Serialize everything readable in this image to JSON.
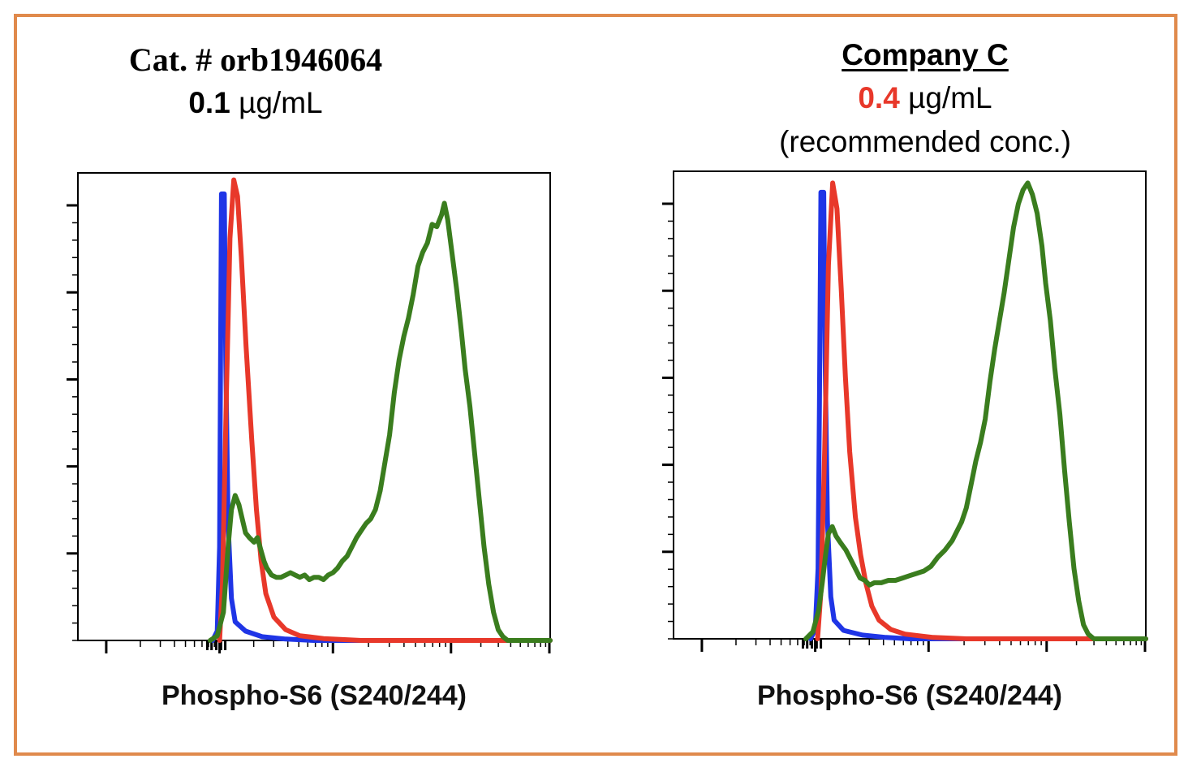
{
  "colors": {
    "border": "#e08a4c",
    "blue": "#1f35e6",
    "red": "#e8382a",
    "green": "#3a7d1e",
    "highlight": "#e8382a"
  },
  "left": {
    "title": "Cat. # orb1946064",
    "conc_value": "0.1",
    "conc_unit": "µg/mL",
    "xlabel": "Phospho-S6 (S240/244)"
  },
  "right": {
    "title": "Company C",
    "conc_value": "0.4",
    "conc_unit": "µg/mL",
    "note": "(recommended conc.)",
    "xlabel": "Phospho-S6 (S240/244)"
  },
  "chart_data": [
    {
      "type": "line",
      "title": "Cat. # orb1946064",
      "xlabel": "Phospho-S6 (S240/244)",
      "ylabel": "",
      "xlim": [
        0,
        100
      ],
      "ylim": [
        0,
        100
      ],
      "grid": false,
      "series": [
        {
          "color": "#1f35e6",
          "points": [
            [
              28.5,
              0
            ],
            [
              29.5,
              2
            ],
            [
              30.0,
              20
            ],
            [
              30.2,
              60
            ],
            [
              30.4,
              95.5
            ],
            [
              31.0,
              95.5
            ],
            [
              31.3,
              60
            ],
            [
              31.8,
              25
            ],
            [
              32.5,
              9
            ],
            [
              33.3,
              4
            ],
            [
              35.5,
              2
            ],
            [
              39,
              0.8
            ],
            [
              44,
              0.3
            ],
            [
              50,
              0
            ],
            [
              100,
              0
            ]
          ]
        },
        {
          "color": "#e8382a",
          "points": [
            [
              30.0,
              0
            ],
            [
              30.6,
              12
            ],
            [
              31.5,
              55
            ],
            [
              32.2,
              86
            ],
            [
              33.0,
              98.5
            ],
            [
              33.8,
              95
            ],
            [
              34.6,
              82
            ],
            [
              35.6,
              63
            ],
            [
              36.8,
              43
            ],
            [
              37.8,
              28
            ],
            [
              38.8,
              17
            ],
            [
              39.8,
              10
            ],
            [
              41.5,
              5
            ],
            [
              44,
              2.3
            ],
            [
              47,
              1
            ],
            [
              52,
              0.4
            ],
            [
              60,
              0
            ],
            [
              100,
              0
            ]
          ]
        },
        {
          "color": "#3a7d1e",
          "points": [
            [
              28,
              0
            ],
            [
              29.5,
              1
            ],
            [
              30.8,
              6
            ],
            [
              31.8,
              20
            ],
            [
              32.5,
              28
            ],
            [
              33.3,
              31
            ],
            [
              34.1,
              29
            ],
            [
              34.8,
              26
            ],
            [
              35.5,
              23
            ],
            [
              36.3,
              22
            ],
            [
              37.3,
              21
            ],
            [
              38.0,
              22
            ],
            [
              38.7,
              19.5
            ],
            [
              39.4,
              17
            ],
            [
              40,
              15.5
            ],
            [
              41,
              14
            ],
            [
              42,
              13.5
            ],
            [
              43,
              13.5
            ],
            [
              44,
              14
            ],
            [
              45,
              14.5
            ],
            [
              46,
              14
            ],
            [
              47,
              13.5
            ],
            [
              48,
              14
            ],
            [
              49,
              13
            ],
            [
              50,
              13.5
            ],
            [
              51,
              13.5
            ],
            [
              52,
              13
            ],
            [
              53,
              14
            ],
            [
              54,
              14.5
            ],
            [
              55,
              15.5
            ],
            [
              56,
              17
            ],
            [
              57,
              18
            ],
            [
              58,
              20
            ],
            [
              59,
              22
            ],
            [
              60,
              23.5
            ],
            [
              61,
              25
            ],
            [
              62,
              26
            ],
            [
              63,
              28
            ],
            [
              64,
              32
            ],
            [
              65,
              38
            ],
            [
              66,
              44
            ],
            [
              67,
              53
            ],
            [
              68,
              60
            ],
            [
              69,
              65
            ],
            [
              70,
              69
            ],
            [
              71,
              74
            ],
            [
              72,
              80
            ],
            [
              73,
              83
            ],
            [
              74,
              85
            ],
            [
              75,
              89
            ],
            [
              76,
              88.5
            ],
            [
              77,
              91
            ],
            [
              77.6,
              93.5
            ],
            [
              78.3,
              90
            ],
            [
              79.2,
              83
            ],
            [
              80.2,
              75
            ],
            [
              81.2,
              66
            ],
            [
              82,
              58
            ],
            [
              83,
              50
            ],
            [
              84,
              40
            ],
            [
              85,
              30
            ],
            [
              86,
              20
            ],
            [
              87,
              12
            ],
            [
              88,
              6
            ],
            [
              89,
              2.3
            ],
            [
              90,
              0.8
            ],
            [
              91,
              0
            ],
            [
              100,
              0
            ]
          ]
        }
      ]
    },
    {
      "type": "line",
      "title": "Company C",
      "xlabel": "Phospho-S6 (S240/244)",
      "ylabel": "",
      "xlim": [
        0,
        100
      ],
      "ylim": [
        0,
        100
      ],
      "grid": false,
      "series": [
        {
          "color": "#1f35e6",
          "points": [
            [
              29,
              0
            ],
            [
              30.0,
              2
            ],
            [
              30.6,
              15
            ],
            [
              30.9,
              50
            ],
            [
              31.2,
              95.5
            ],
            [
              31.8,
              95.5
            ],
            [
              32.1,
              60
            ],
            [
              32.6,
              25
            ],
            [
              33.3,
              9
            ],
            [
              34.0,
              4
            ],
            [
              36,
              1.8
            ],
            [
              40,
              0.8
            ],
            [
              45,
              0.3
            ],
            [
              50,
              0
            ],
            [
              100,
              0
            ]
          ]
        },
        {
          "color": "#e8382a",
          "points": [
            [
              30.5,
              0
            ],
            [
              31.2,
              10
            ],
            [
              32.0,
              40
            ],
            [
              32.8,
              80
            ],
            [
              33.7,
              97.5
            ],
            [
              34.6,
              92
            ],
            [
              35.5,
              75
            ],
            [
              36.4,
              56
            ],
            [
              37.3,
              40
            ],
            [
              38.5,
              26
            ],
            [
              39.6,
              18
            ],
            [
              40.7,
              12
            ],
            [
              42,
              7
            ],
            [
              43.5,
              4
            ],
            [
              46,
              2
            ],
            [
              49,
              1
            ],
            [
              55,
              0.3
            ],
            [
              62,
              0
            ],
            [
              100,
              0
            ]
          ]
        },
        {
          "color": "#3a7d1e",
          "points": [
            [
              28,
              0
            ],
            [
              29.5,
              1.5
            ],
            [
              30.7,
              6
            ],
            [
              31.5,
              12
            ],
            [
              32.2,
              18
            ],
            [
              32.8,
              22.5
            ],
            [
              33.6,
              24
            ],
            [
              34.4,
              22
            ],
            [
              35.4,
              20.5
            ],
            [
              36.5,
              19
            ],
            [
              37.5,
              17
            ],
            [
              38.5,
              15
            ],
            [
              39.5,
              13
            ],
            [
              40.5,
              12.5
            ],
            [
              41.5,
              11.5
            ],
            [
              42.5,
              12
            ],
            [
              44,
              12
            ],
            [
              45.5,
              12.5
            ],
            [
              47,
              12.5
            ],
            [
              48.5,
              13
            ],
            [
              50,
              13.5
            ],
            [
              51.5,
              14
            ],
            [
              53,
              14.5
            ],
            [
              54.5,
              15.5
            ],
            [
              56,
              17.5
            ],
            [
              57.5,
              19
            ],
            [
              59,
              21
            ],
            [
              60,
              23
            ],
            [
              61,
              25
            ],
            [
              62,
              28
            ],
            [
              63,
              33
            ],
            [
              64,
              38
            ],
            [
              65,
              42
            ],
            [
              66,
              47
            ],
            [
              67,
              55
            ],
            [
              68,
              62
            ],
            [
              69,
              68
            ],
            [
              70,
              74
            ],
            [
              71,
              81
            ],
            [
              72,
              88
            ],
            [
              73,
              93
            ],
            [
              74,
              96
            ],
            [
              75,
              97.5
            ],
            [
              76,
              95
            ],
            [
              77,
              91
            ],
            [
              78,
              84
            ],
            [
              78.8,
              76
            ],
            [
              79.8,
              68
            ],
            [
              80.7,
              58
            ],
            [
              81.8,
              48
            ],
            [
              82.8,
              36
            ],
            [
              83.8,
              25
            ],
            [
              84.8,
              15
            ],
            [
              85.8,
              8
            ],
            [
              86.8,
              3
            ],
            [
              87.8,
              1
            ],
            [
              89,
              0
            ],
            [
              100,
              0
            ]
          ]
        }
      ]
    }
  ]
}
